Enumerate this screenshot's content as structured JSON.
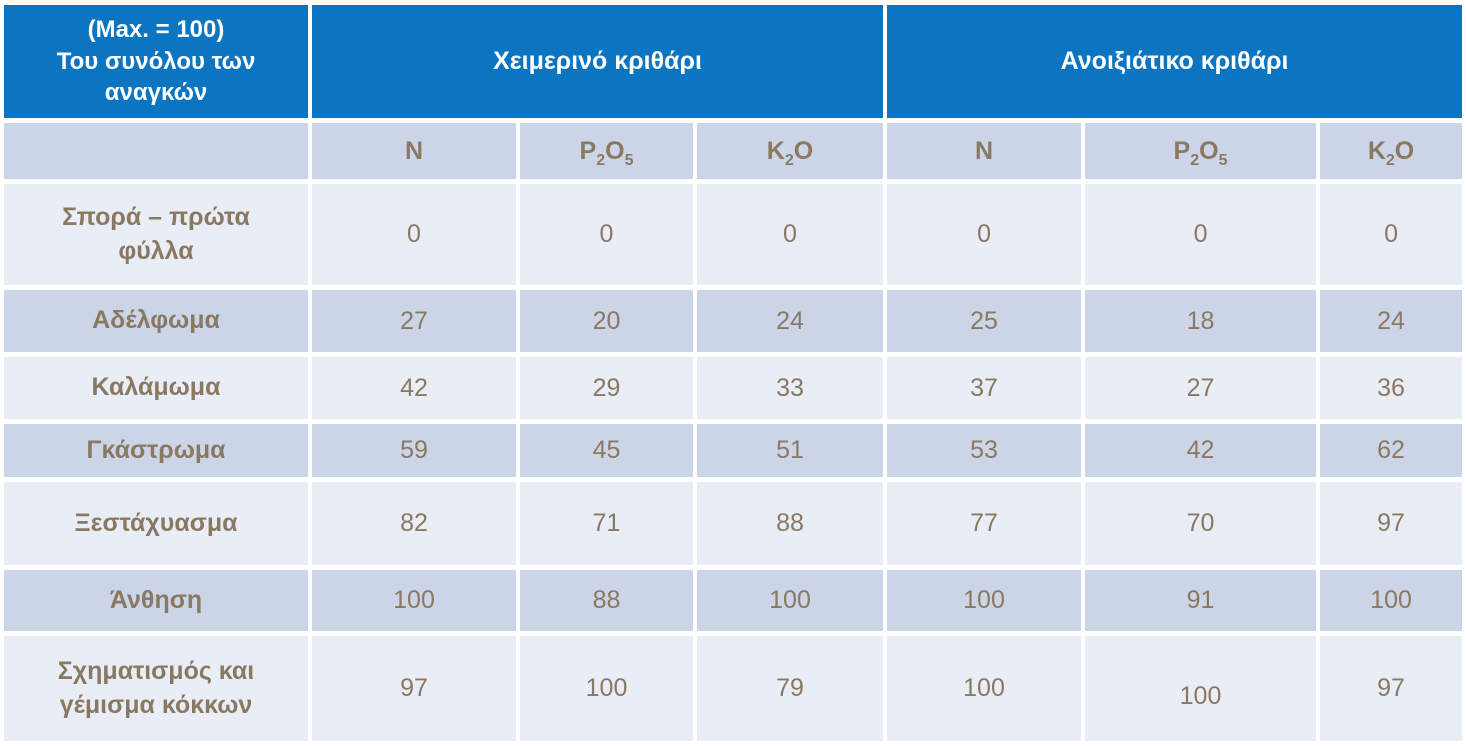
{
  "chart_data": {
    "type": "table",
    "corner_header": "(Max. = 100)\nΤου συνόλου των αναγκών",
    "groups": [
      {
        "label": "Χειμερινό κριθάρι",
        "columns": [
          "N",
          "P_2O_5",
          "K_2O"
        ]
      },
      {
        "label": "Ανοιξιάτικο κριθάρι",
        "columns": [
          "N",
          "P_2O_5",
          "K_2O"
        ]
      }
    ],
    "rows": [
      {
        "stage": "Σπορά – πρώτα\nφύλλα",
        "values": [
          0,
          0,
          0,
          0,
          0,
          0
        ]
      },
      {
        "stage": "Αδέλφωμα",
        "values": [
          27,
          20,
          24,
          25,
          18,
          24
        ]
      },
      {
        "stage": "Καλάμωμα",
        "values": [
          42,
          29,
          33,
          37,
          27,
          36
        ]
      },
      {
        "stage": "Γκάστρωμα",
        "values": [
          59,
          45,
          51,
          53,
          42,
          62
        ]
      },
      {
        "stage": "Ξεστάχυασμα",
        "values": [
          82,
          71,
          88,
          77,
          70,
          97
        ]
      },
      {
        "stage": "Άνθηση",
        "values": [
          100,
          88,
          100,
          100,
          91,
          100
        ]
      },
      {
        "stage": "Σχηματισμός και\nγέμισμα κόκκων",
        "values": [
          97,
          100,
          79,
          100,
          100,
          97
        ]
      }
    ],
    "value_range": [
      0,
      100
    ],
    "colors": {
      "header_bg": "#0b75c1",
      "header_text": "#ffffff",
      "row_dark": "#ccd5e7",
      "row_light": "#e9edf6",
      "cell_text": "#8a7962"
    }
  }
}
